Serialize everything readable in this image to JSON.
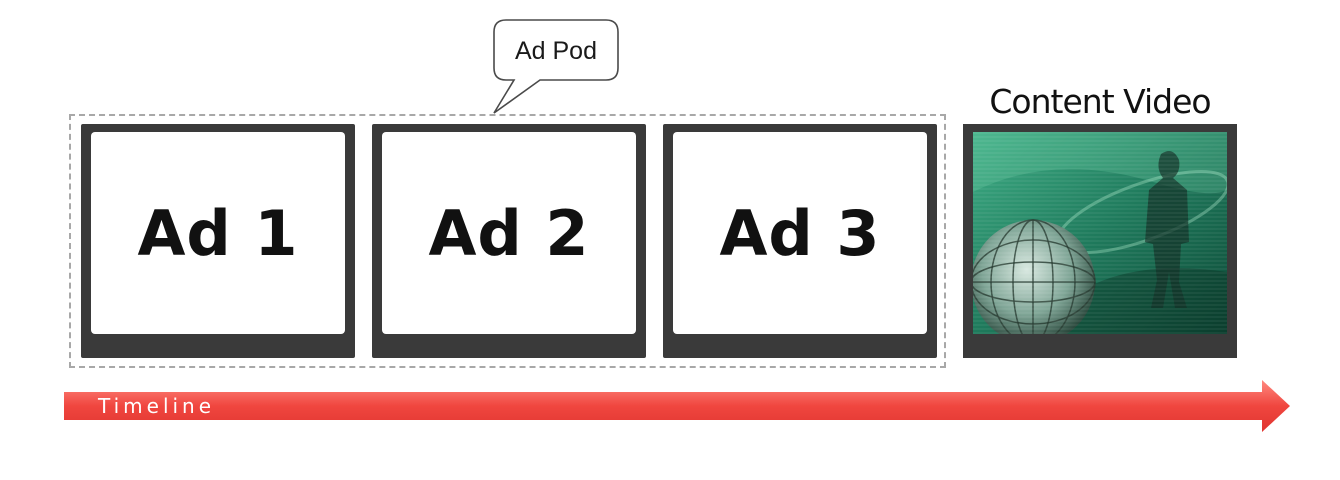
{
  "callout": {
    "label": "Ad Pod"
  },
  "ad_pod": {
    "ads": [
      {
        "label": "Ad 1"
      },
      {
        "label": "Ad 2"
      },
      {
        "label": "Ad 3"
      }
    ]
  },
  "content": {
    "label": "Content Video",
    "thumbnail": "content-video-thumbnail"
  },
  "timeline": {
    "label": "Timeline",
    "color": "#f0463f"
  },
  "colors": {
    "frame": "#3a3a3a",
    "pod_border": "#a8a8a8",
    "video_tint": "#1f7a5c"
  }
}
